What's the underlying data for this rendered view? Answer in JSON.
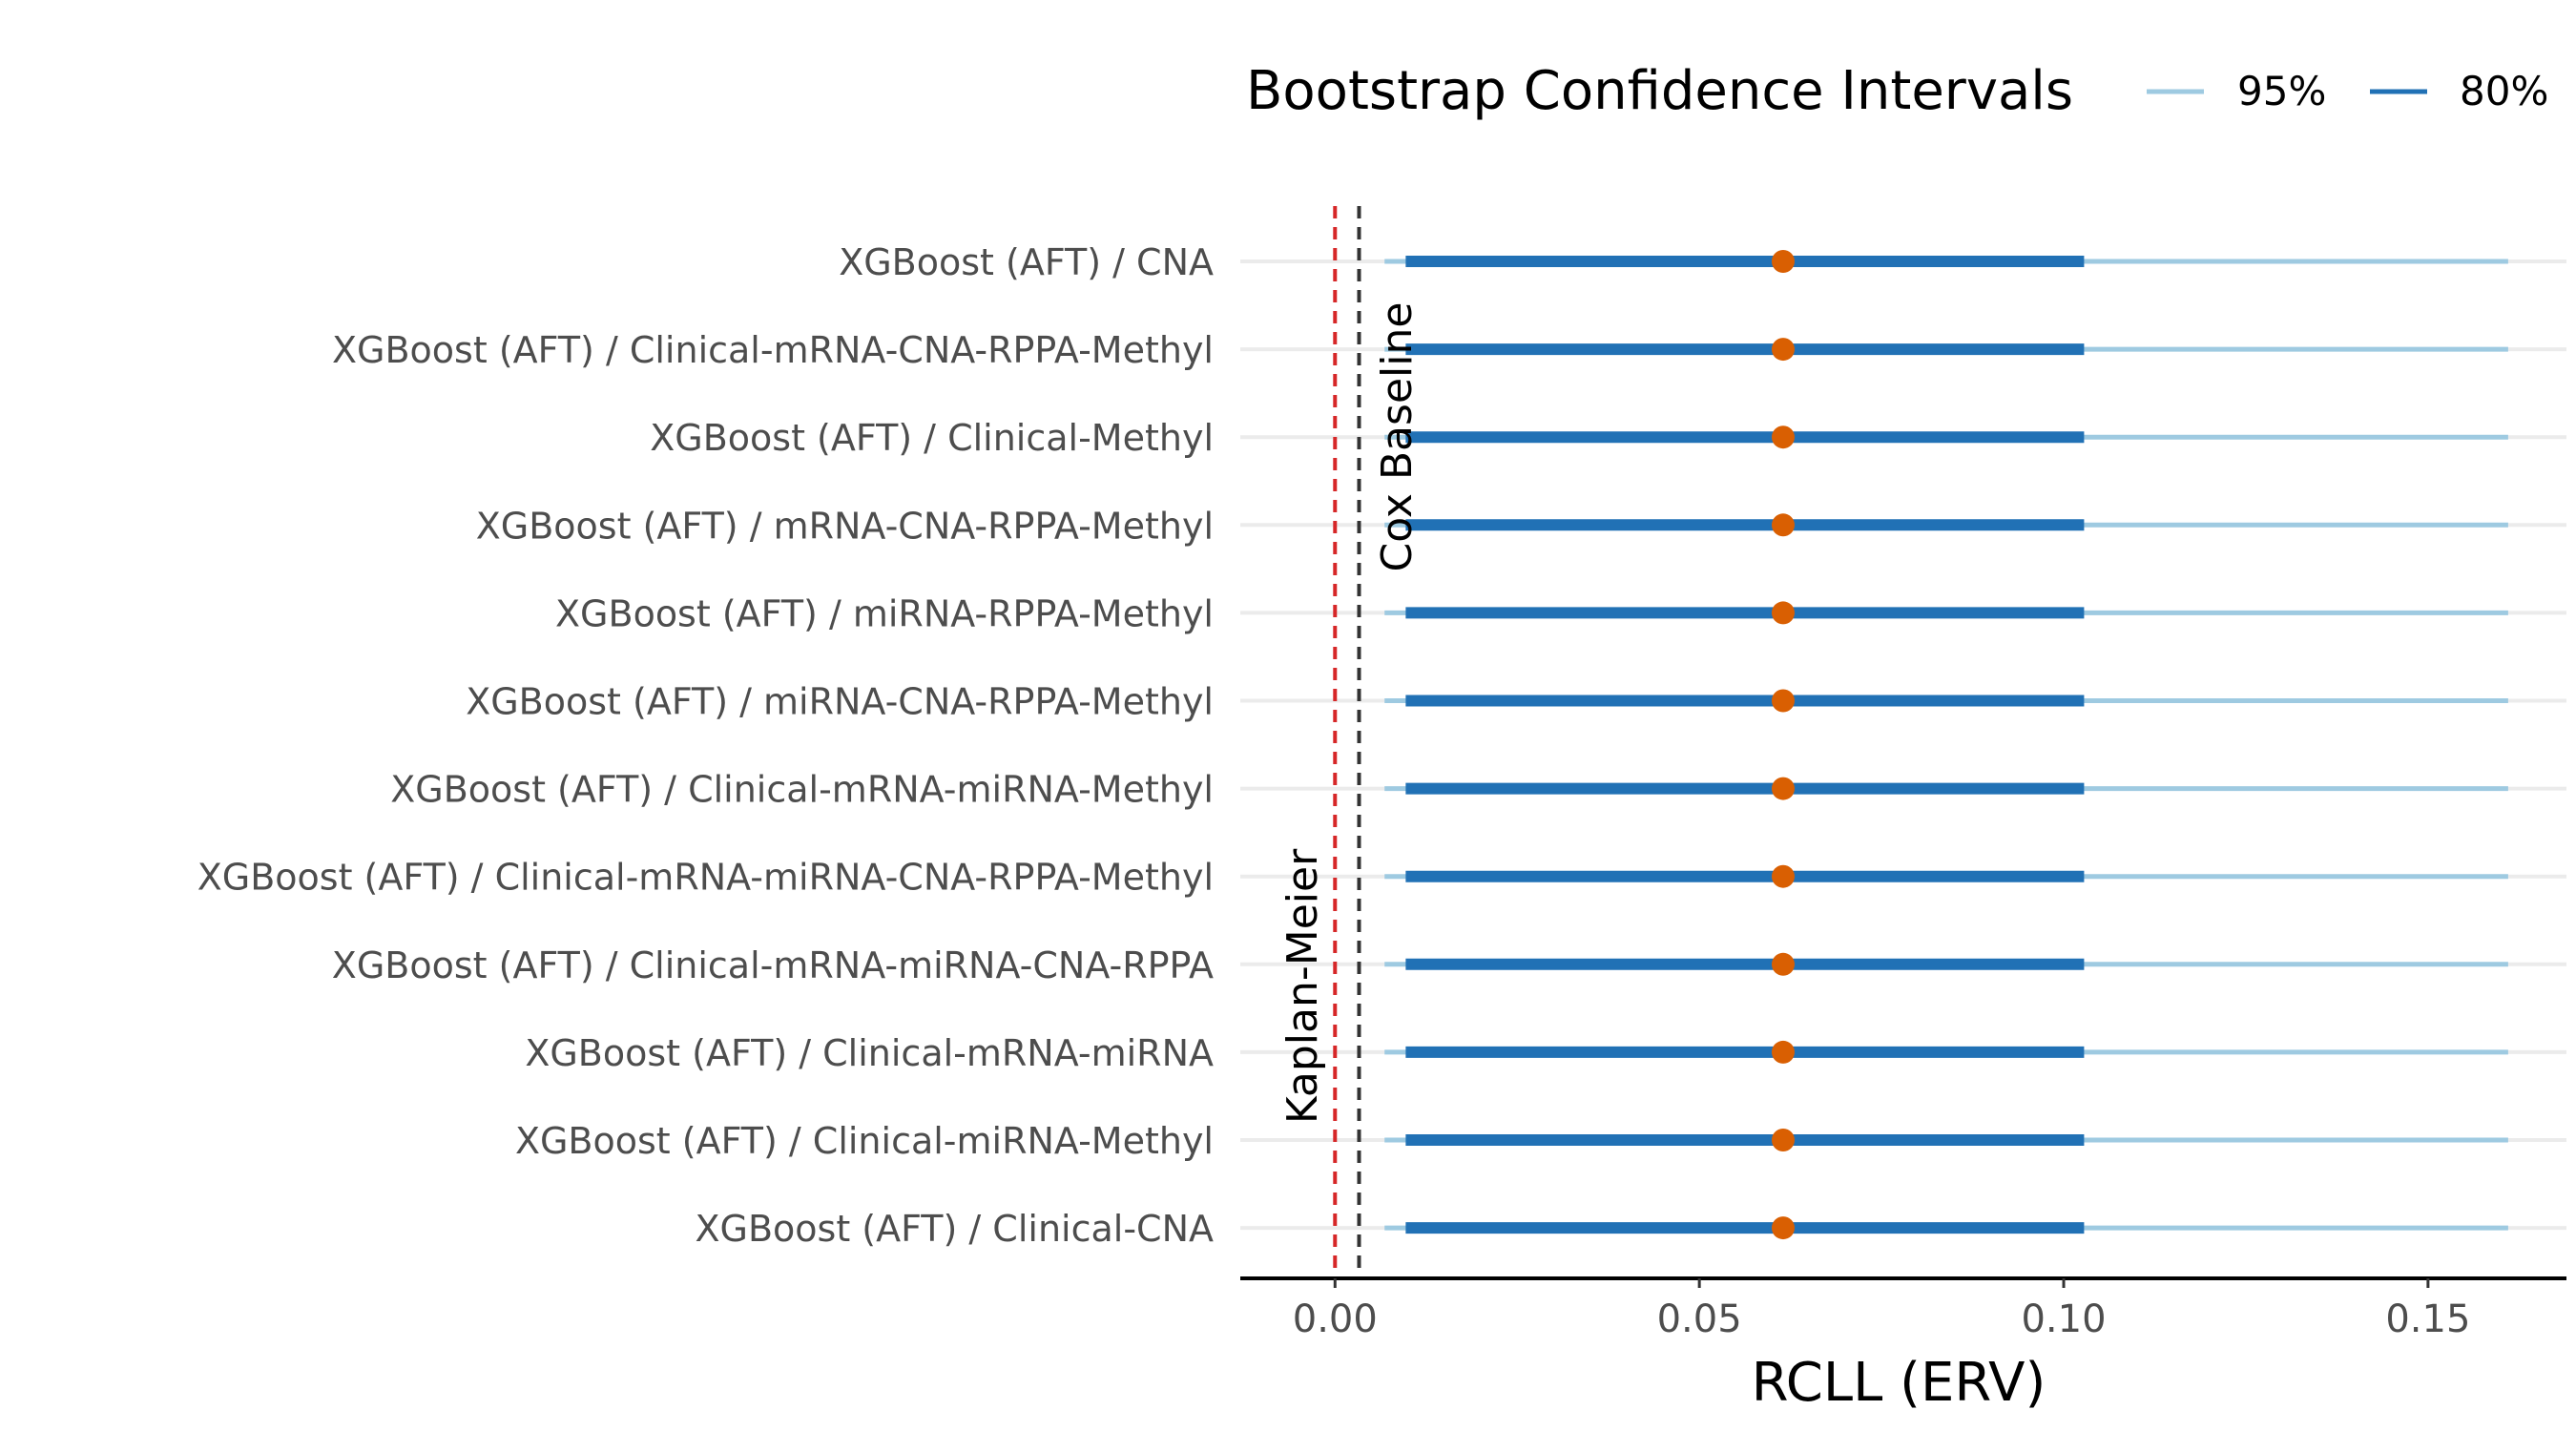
{
  "chart_data": {
    "type": "forest",
    "xlabel": "RCLL (ERV)",
    "legend_title": "Bootstrap Confidence Intervals",
    "legend": [
      {
        "label": "95%",
        "color": "#9ecae1"
      },
      {
        "label": "80%",
        "color": "#2171b5"
      }
    ],
    "legend_position": "top-right",
    "xlim": [
      -0.013,
      0.169
    ],
    "xticks": [
      0.0,
      0.05,
      0.1,
      0.15
    ],
    "xtick_labels": [
      "0.00",
      "0.05",
      "0.10",
      "0.15"
    ],
    "point_color": "#d95f02",
    "reference_lines": [
      {
        "label": "Kaplan-Meier",
        "x": 0.0,
        "color": "#d62728",
        "style": "dashed"
      },
      {
        "label": "Cox Baseline",
        "x": 0.0033,
        "color": "#333333",
        "style": "dashed"
      }
    ],
    "models": [
      {
        "label": "XGBoost (AFT) / CNA",
        "estimate": 0.0615,
        "ci80": [
          0.0097,
          0.1028
        ],
        "ci95": [
          0.0068,
          0.161
        ]
      },
      {
        "label": "XGBoost (AFT) / Clinical-mRNA-CNA-RPPA-Methyl",
        "estimate": 0.0615,
        "ci80": [
          0.0097,
          0.1028
        ],
        "ci95": [
          0.0068,
          0.161
        ]
      },
      {
        "label": "XGBoost (AFT) / Clinical-Methyl",
        "estimate": 0.0615,
        "ci80": [
          0.0097,
          0.1028
        ],
        "ci95": [
          0.0068,
          0.161
        ]
      },
      {
        "label": "XGBoost (AFT) / mRNA-CNA-RPPA-Methyl",
        "estimate": 0.0615,
        "ci80": [
          0.0097,
          0.1028
        ],
        "ci95": [
          0.0068,
          0.161
        ]
      },
      {
        "label": "XGBoost (AFT) / miRNA-RPPA-Methyl",
        "estimate": 0.0615,
        "ci80": [
          0.0097,
          0.1028
        ],
        "ci95": [
          0.0068,
          0.161
        ]
      },
      {
        "label": "XGBoost (AFT) / miRNA-CNA-RPPA-Methyl",
        "estimate": 0.0615,
        "ci80": [
          0.0097,
          0.1028
        ],
        "ci95": [
          0.0068,
          0.161
        ]
      },
      {
        "label": "XGBoost (AFT) / Clinical-mRNA-miRNA-Methyl",
        "estimate": 0.0615,
        "ci80": [
          0.0097,
          0.1028
        ],
        "ci95": [
          0.0068,
          0.161
        ]
      },
      {
        "label": "XGBoost (AFT) / Clinical-mRNA-miRNA-CNA-RPPA-Methyl",
        "estimate": 0.0615,
        "ci80": [
          0.0097,
          0.1028
        ],
        "ci95": [
          0.0068,
          0.161
        ]
      },
      {
        "label": "XGBoost (AFT) / Clinical-mRNA-miRNA-CNA-RPPA",
        "estimate": 0.0615,
        "ci80": [
          0.0097,
          0.1028
        ],
        "ci95": [
          0.0068,
          0.161
        ]
      },
      {
        "label": "XGBoost (AFT) / Clinical-mRNA-miRNA",
        "estimate": 0.0615,
        "ci80": [
          0.0097,
          0.1028
        ],
        "ci95": [
          0.0068,
          0.161
        ]
      },
      {
        "label": "XGBoost (AFT) / Clinical-miRNA-Methyl",
        "estimate": 0.0615,
        "ci80": [
          0.0097,
          0.1028
        ],
        "ci95": [
          0.0068,
          0.161
        ]
      },
      {
        "label": "XGBoost (AFT) / Clinical-CNA",
        "estimate": 0.0615,
        "ci80": [
          0.0097,
          0.1028
        ],
        "ci95": [
          0.0068,
          0.161
        ]
      }
    ]
  }
}
